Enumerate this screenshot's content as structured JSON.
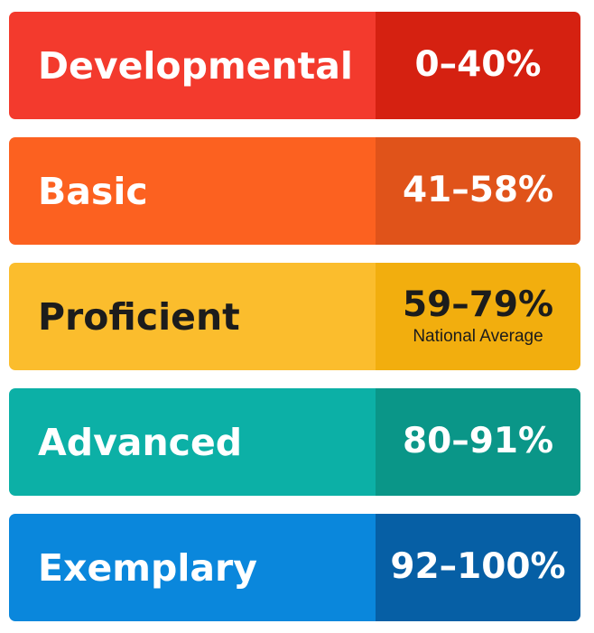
{
  "bands": [
    {
      "label": "Developmental",
      "range": "0–40%",
      "note": "",
      "color_label": "#f33a2d",
      "color_range": "#d52111",
      "text_color": "light"
    },
    {
      "label": "Basic",
      "range": "41–58%",
      "note": "",
      "color_label": "#fc6120",
      "color_range": "#e0531a",
      "text_color": "light"
    },
    {
      "label": "Proficient",
      "range": "59–79%",
      "note": "National Average",
      "color_label": "#fbbd2d",
      "color_range": "#f2ae0e",
      "text_color": "dark"
    },
    {
      "label": "Advanced",
      "range": "80–91%",
      "note": "",
      "color_label": "#0cb0a6",
      "color_range": "#0a9688",
      "text_color": "light"
    },
    {
      "label": "Exemplary",
      "range": "92–100%",
      "note": "",
      "color_label": "#0a87dc",
      "color_range": "#065fa5",
      "text_color": "light"
    }
  ]
}
